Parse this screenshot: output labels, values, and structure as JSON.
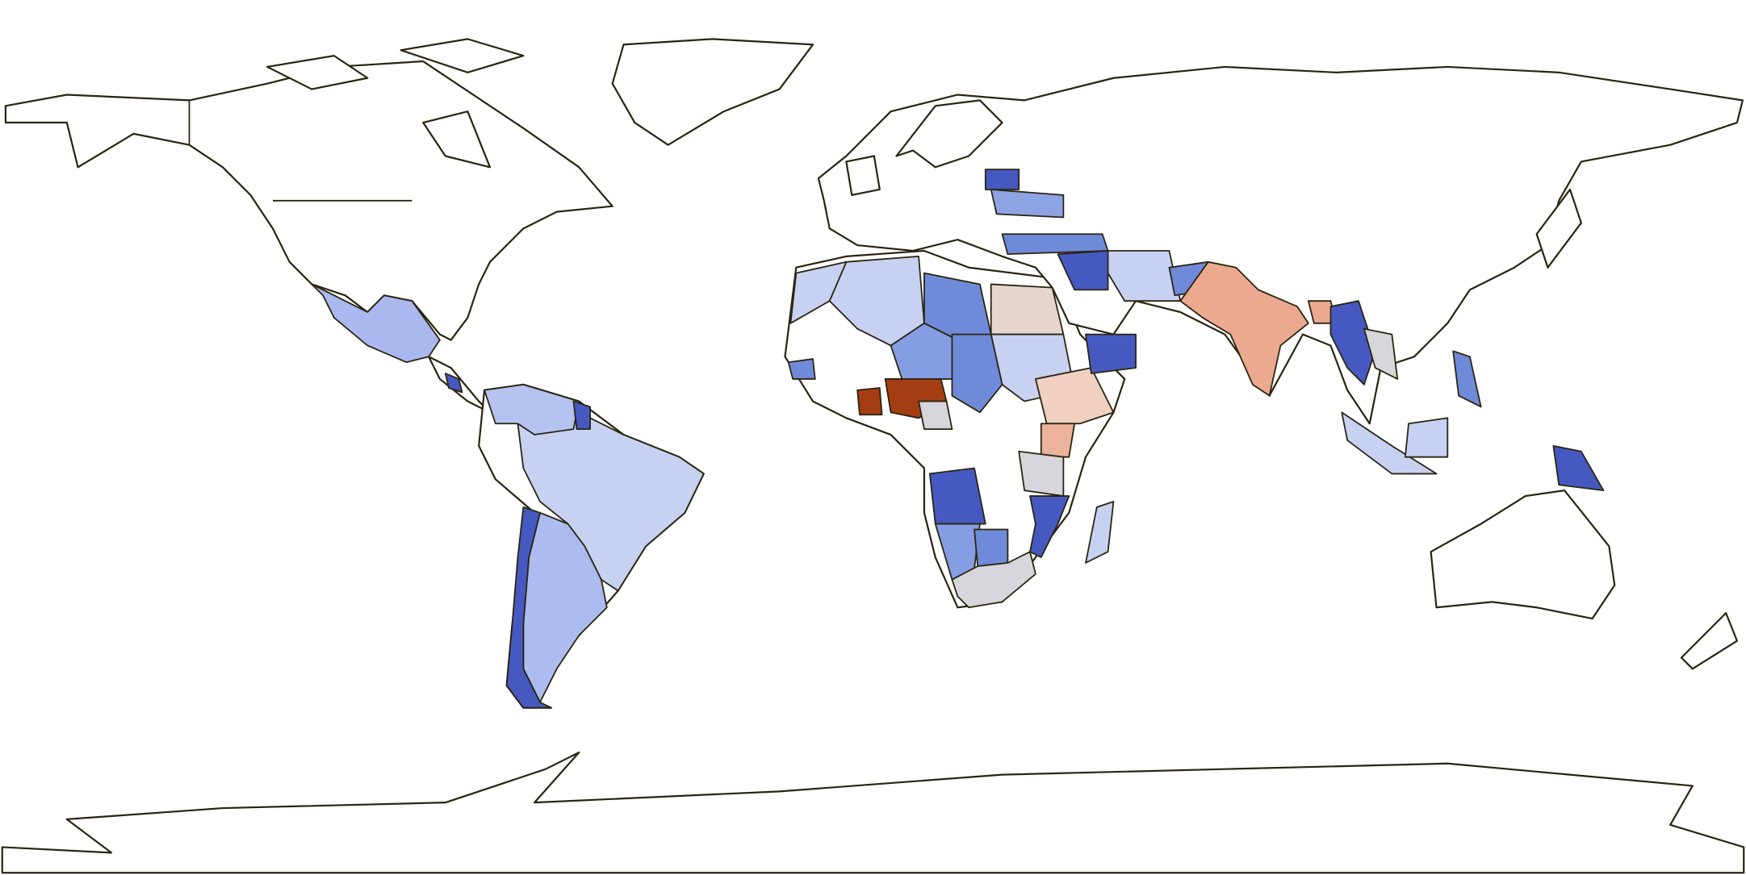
{
  "map": {
    "fills": [
      "#a9b8ef",
      "#c7d1f2",
      "#adbcf0",
      "#4659c1",
      "#b5c3f0",
      "#6f8ad9",
      "#e8d6ce",
      "#859ee3",
      "#a43e12",
      "#efd0c1",
      "#ebb39c",
      "#d6d6dc",
      "#ebaa8f",
      "#8ea3e4"
    ]
  }
}
